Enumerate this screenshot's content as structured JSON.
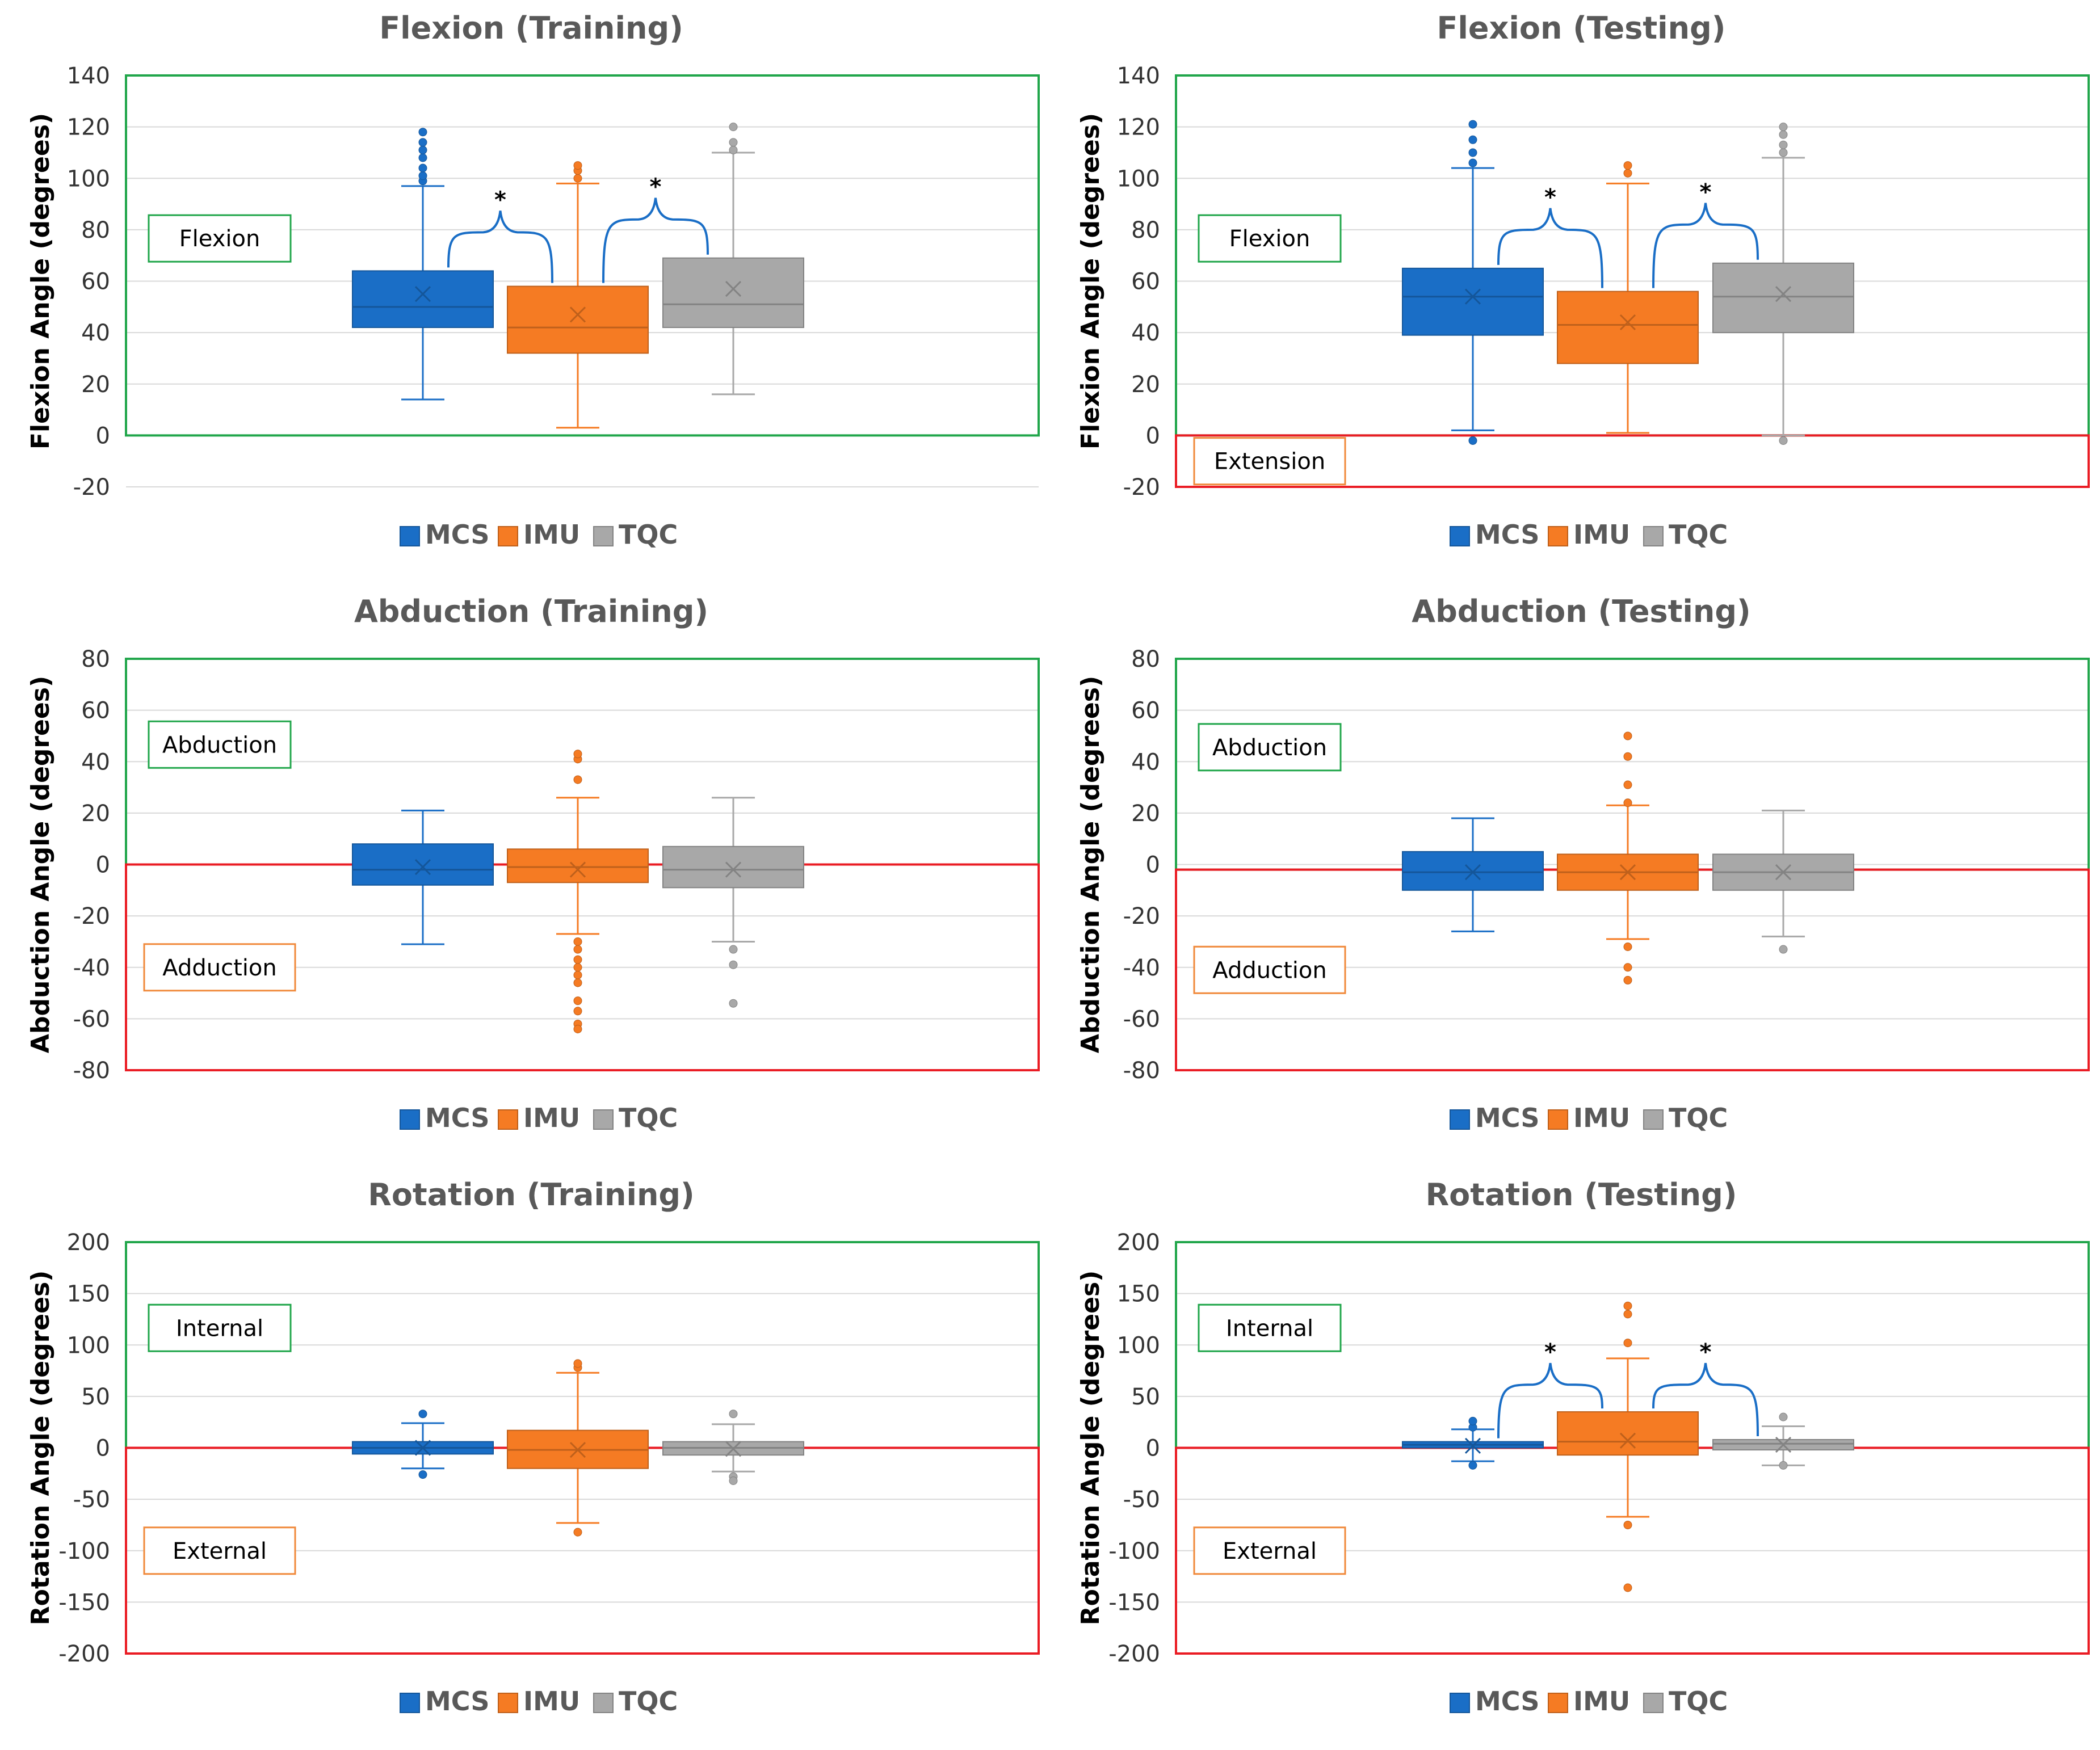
{
  "colors": {
    "MCS": "#1a6ec6",
    "IMU": "#f57b23",
    "TQC": "#a8a8a8",
    "positive_region": "#21a64b",
    "negative_region": "#ea1c24",
    "title_text": "#595959",
    "grid": "#d9d9d9",
    "annot_pos_border": "#21a64b",
    "annot_neg_border": "#f08a3c",
    "bracket": "#1a6ec6"
  },
  "legend": [
    "MCS",
    "IMU",
    "TQC"
  ],
  "chart_data": [
    {
      "type": "box",
      "title": "Flexion (Training)",
      "ylabel": "Flexion Angle (degrees)",
      "ylim": [
        -20,
        140
      ],
      "yticks": [
        140,
        120,
        100,
        80,
        60,
        40,
        20,
        0,
        -20
      ],
      "tick_labels": [
        "140",
        "120",
        "100",
        "80",
        "60",
        "40",
        "20",
        "0",
        "-20"
      ],
      "positive_label": "Flexion",
      "negative_label": "",
      "positive_region": [
        0,
        140
      ],
      "negative_region": null,
      "series": [
        {
          "name": "MCS",
          "whisker_low": 14,
          "q1": 42,
          "median": 50,
          "q3": 64,
          "whisker_high": 97,
          "mean": 55,
          "outliers": [
            99,
            101,
            104,
            108,
            111,
            114,
            118
          ]
        },
        {
          "name": "IMU",
          "whisker_low": 3,
          "q1": 32,
          "median": 42,
          "q3": 58,
          "whisker_high": 98,
          "mean": 47,
          "outliers": [
            100,
            103,
            105
          ]
        },
        {
          "name": "TQC",
          "whisker_low": 16,
          "q1": 42,
          "median": 51,
          "q3": 69,
          "whisker_high": 110,
          "mean": 57,
          "outliers": [
            111,
            114,
            120
          ]
        }
      ],
      "significance": [
        {
          "from": "MCS",
          "to": "IMU",
          "label": "*"
        },
        {
          "from": "IMU",
          "to": "TQC",
          "label": "*"
        }
      ]
    },
    {
      "type": "box",
      "title": "Flexion (Testing)",
      "ylabel": "Flexion Angle (degrees)",
      "ylim": [
        -20,
        140
      ],
      "yticks": [
        140,
        120,
        100,
        80,
        60,
        40,
        20,
        0,
        -20
      ],
      "tick_labels": [
        "140",
        "120",
        "100",
        "80",
        "60",
        "40",
        "20",
        "0",
        "-20"
      ],
      "positive_label": "Flexion",
      "negative_label": "Extension",
      "positive_region": [
        0,
        140
      ],
      "negative_region": [
        -20,
        0
      ],
      "series": [
        {
          "name": "MCS",
          "whisker_low": 2,
          "q1": 39,
          "median": 54,
          "q3": 65,
          "whisker_high": 104,
          "mean": 54,
          "outliers": [
            -2,
            106,
            110,
            115,
            121
          ]
        },
        {
          "name": "IMU",
          "whisker_low": 1,
          "q1": 28,
          "median": 43,
          "q3": 56,
          "whisker_high": 98,
          "mean": 44,
          "outliers": [
            102,
            105
          ]
        },
        {
          "name": "TQC",
          "whisker_low": 0,
          "q1": 40,
          "median": 54,
          "q3": 67,
          "whisker_high": 108,
          "mean": 55,
          "outliers": [
            -2,
            110,
            113,
            117,
            120
          ]
        }
      ],
      "significance": [
        {
          "from": "MCS",
          "to": "IMU",
          "label": "*"
        },
        {
          "from": "IMU",
          "to": "TQC",
          "label": "*"
        }
      ]
    },
    {
      "type": "box",
      "title": "Abduction (Training)",
      "ylabel": "Abduction Angle (degrees)",
      "ylim": [
        -80,
        80
      ],
      "yticks": [
        80,
        60,
        40,
        20,
        0,
        -20,
        -40,
        -60,
        -80
      ],
      "tick_labels": [
        "80",
        "60",
        "40",
        "20",
        "0",
        "-20",
        "-40",
        "-60",
        "-80"
      ],
      "positive_label": "Abduction",
      "negative_label": "Adduction",
      "positive_region": [
        0,
        80
      ],
      "negative_region": [
        -80,
        0
      ],
      "series": [
        {
          "name": "MCS",
          "whisker_low": -31,
          "q1": -8,
          "median": -2,
          "q3": 8,
          "whisker_high": 21,
          "mean": -1,
          "outliers": []
        },
        {
          "name": "IMU",
          "whisker_low": -27,
          "q1": -7,
          "median": -1,
          "q3": 6,
          "whisker_high": 26,
          "mean": -2,
          "outliers": [
            33,
            41,
            43,
            -30,
            -33,
            -37,
            -40,
            -43,
            -46,
            -53,
            -57,
            -62,
            -64
          ]
        },
        {
          "name": "TQC",
          "whisker_low": -30,
          "q1": -9,
          "median": -2,
          "q3": 7,
          "whisker_high": 26,
          "mean": -2,
          "outliers": [
            -33,
            -39,
            -54
          ]
        }
      ],
      "significance": []
    },
    {
      "type": "box",
      "title": "Abduction (Testing)",
      "ylabel": "Abduction Angle (degrees)",
      "ylim": [
        -80,
        80
      ],
      "yticks": [
        80,
        60,
        40,
        20,
        0,
        -20,
        -40,
        -60,
        -80
      ],
      "tick_labels": [
        "80",
        "60",
        "40",
        "20",
        "0",
        "-20",
        "-40",
        "-60",
        "-80"
      ],
      "positive_label": "Abduction",
      "negative_label": "Adduction",
      "positive_region": [
        -2,
        80
      ],
      "negative_region": [
        -80,
        -2
      ],
      "series": [
        {
          "name": "MCS",
          "whisker_low": -26,
          "q1": -10,
          "median": -3,
          "q3": 5,
          "whisker_high": 18,
          "mean": -3,
          "outliers": []
        },
        {
          "name": "IMU",
          "whisker_low": -29,
          "q1": -10,
          "median": -3,
          "q3": 4,
          "whisker_high": 23,
          "mean": -3,
          "outliers": [
            24,
            31,
            42,
            50,
            -32,
            -40,
            -45
          ]
        },
        {
          "name": "TQC",
          "whisker_low": -28,
          "q1": -10,
          "median": -3,
          "q3": 4,
          "whisker_high": 21,
          "mean": -3,
          "outliers": [
            -33
          ]
        }
      ],
      "significance": []
    },
    {
      "type": "box",
      "title": "Rotation (Training)",
      "ylabel": "Rotation Angle (degrees)",
      "ylim": [
        -200,
        200
      ],
      "yticks": [
        200,
        150,
        100,
        50,
        0,
        -50,
        -100,
        -150,
        -200
      ],
      "tick_labels": [
        "200",
        "150",
        "100",
        "50",
        "0",
        "-50",
        "-100",
        "-150",
        "-200"
      ],
      "positive_label": "Internal",
      "negative_label": "External",
      "positive_region": [
        0,
        200
      ],
      "negative_region": [
        -200,
        0
      ],
      "series": [
        {
          "name": "MCS",
          "whisker_low": -20,
          "q1": -6,
          "median": 0,
          "q3": 6,
          "whisker_high": 24,
          "mean": 0,
          "outliers": [
            33,
            -26
          ]
        },
        {
          "name": "IMU",
          "whisker_low": -73,
          "q1": -20,
          "median": -2,
          "q3": 17,
          "whisker_high": 73,
          "mean": -2,
          "outliers": [
            78,
            82,
            -82
          ]
        },
        {
          "name": "TQC",
          "whisker_low": -23,
          "q1": -7,
          "median": 0,
          "q3": 6,
          "whisker_high": 23,
          "mean": -1,
          "outliers": [
            33,
            -28,
            -32
          ]
        }
      ],
      "significance": []
    },
    {
      "type": "box",
      "title": "Rotation (Testing)",
      "ylabel": "Rotation Angle (degrees)",
      "ylim": [
        -200,
        200
      ],
      "yticks": [
        200,
        150,
        100,
        50,
        0,
        -50,
        -100,
        -150,
        -200
      ],
      "tick_labels": [
        "200",
        "150",
        "100",
        "50",
        "0",
        "-50",
        "-100",
        "-150",
        "-200"
      ],
      "positive_label": "Internal",
      "negative_label": "External",
      "positive_region": [
        0,
        200
      ],
      "negative_region": [
        -200,
        0
      ],
      "series": [
        {
          "name": "MCS",
          "whisker_low": -13,
          "q1": 0,
          "median": 3,
          "q3": 6,
          "whisker_high": 18,
          "mean": 2,
          "outliers": [
            20,
            26,
            -17
          ]
        },
        {
          "name": "IMU",
          "whisker_low": -67,
          "q1": -7,
          "median": 6,
          "q3": 35,
          "whisker_high": 87,
          "mean": 7,
          "outliers": [
            102,
            130,
            138,
            -75,
            -136
          ]
        },
        {
          "name": "TQC",
          "whisker_low": -17,
          "q1": -2,
          "median": 4,
          "q3": 8,
          "whisker_high": 21,
          "mean": 3,
          "outliers": [
            30,
            -17
          ]
        }
      ],
      "significance": [
        {
          "from": "MCS",
          "to": "IMU",
          "label": "*"
        },
        {
          "from": "IMU",
          "to": "TQC",
          "label": "*"
        }
      ]
    }
  ]
}
